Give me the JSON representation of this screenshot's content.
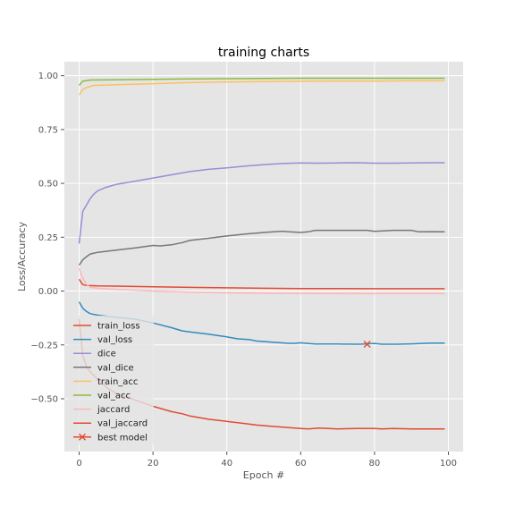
{
  "chart_data": {
    "type": "line",
    "title": "training charts",
    "xlabel": "Epoch #",
    "ylabel": "Loss/Accuracy",
    "xlim": [
      -4,
      104
    ],
    "ylim": [
      -0.745,
      1.065
    ],
    "xticks": [
      0,
      20,
      40,
      60,
      80,
      100
    ],
    "xtick_labels": [
      "0",
      "20",
      "40",
      "60",
      "80",
      "100"
    ],
    "yticks": [
      -0.5,
      -0.25,
      0.0,
      0.25,
      0.5,
      0.75,
      1.0
    ],
    "ytick_labels": [
      "−0.50",
      "−0.25",
      "0.00",
      "0.25",
      "0.50",
      "0.75",
      "1.00"
    ],
    "grid": true,
    "legend_position": "lower-left",
    "series": [
      {
        "name": "train_loss",
        "color": "#E24A33",
        "points": [
          [
            0,
            0.055
          ],
          [
            1,
            0.03
          ],
          [
            2,
            0.026
          ],
          [
            5,
            0.024
          ],
          [
            10,
            0.023
          ],
          [
            20,
            0.02
          ],
          [
            30,
            0.017
          ],
          [
            40,
            0.015
          ],
          [
            50,
            0.013
          ],
          [
            60,
            0.012
          ],
          [
            70,
            0.012
          ],
          [
            80,
            0.011
          ],
          [
            90,
            0.011
          ],
          [
            99,
            0.011
          ]
        ]
      },
      {
        "name": "val_loss",
        "color": "#348ABD",
        "points": [
          [
            0,
            -0.05
          ],
          [
            1,
            -0.08
          ],
          [
            2,
            -0.095
          ],
          [
            3,
            -0.105
          ],
          [
            5,
            -0.112
          ],
          [
            8,
            -0.118
          ],
          [
            10,
            -0.122
          ],
          [
            15,
            -0.13
          ],
          [
            20,
            -0.148
          ],
          [
            25,
            -0.17
          ],
          [
            28,
            -0.185
          ],
          [
            30,
            -0.19
          ],
          [
            35,
            -0.2
          ],
          [
            40,
            -0.213
          ],
          [
            43,
            -0.222
          ],
          [
            46,
            -0.225
          ],
          [
            48,
            -0.232
          ],
          [
            52,
            -0.237
          ],
          [
            56,
            -0.242
          ],
          [
            58,
            -0.243
          ],
          [
            60,
            -0.24
          ],
          [
            62,
            -0.243
          ],
          [
            64,
            -0.246
          ],
          [
            70,
            -0.246
          ],
          [
            76,
            -0.247
          ],
          [
            80,
            -0.243
          ],
          [
            82,
            -0.247
          ],
          [
            86,
            -0.247
          ],
          [
            90,
            -0.245
          ],
          [
            95,
            -0.242
          ],
          [
            99,
            -0.242
          ]
        ]
      },
      {
        "name": "dice",
        "color": "#988ED5",
        "points": [
          [
            0,
            0.22
          ],
          [
            1,
            0.37
          ],
          [
            2,
            0.4
          ],
          [
            3,
            0.43
          ],
          [
            4,
            0.45
          ],
          [
            5,
            0.465
          ],
          [
            7,
            0.48
          ],
          [
            10,
            0.495
          ],
          [
            15,
            0.51
          ],
          [
            20,
            0.525
          ],
          [
            25,
            0.54
          ],
          [
            30,
            0.555
          ],
          [
            35,
            0.565
          ],
          [
            40,
            0.572
          ],
          [
            45,
            0.58
          ],
          [
            50,
            0.587
          ],
          [
            55,
            0.592
          ],
          [
            60,
            0.595
          ],
          [
            65,
            0.594
          ],
          [
            70,
            0.595
          ],
          [
            75,
            0.596
          ],
          [
            80,
            0.594
          ],
          [
            85,
            0.594
          ],
          [
            90,
            0.595
          ],
          [
            95,
            0.596
          ],
          [
            99,
            0.596
          ]
        ]
      },
      {
        "name": "val_dice",
        "color": "#777777",
        "points": [
          [
            0,
            0.12
          ],
          [
            1,
            0.145
          ],
          [
            2,
            0.16
          ],
          [
            3,
            0.172
          ],
          [
            5,
            0.18
          ],
          [
            8,
            0.186
          ],
          [
            10,
            0.19
          ],
          [
            15,
            0.2
          ],
          [
            20,
            0.212
          ],
          [
            22,
            0.21
          ],
          [
            25,
            0.215
          ],
          [
            28,
            0.225
          ],
          [
            30,
            0.235
          ],
          [
            35,
            0.245
          ],
          [
            40,
            0.256
          ],
          [
            45,
            0.265
          ],
          [
            50,
            0.272
          ],
          [
            55,
            0.278
          ],
          [
            57,
            0.275
          ],
          [
            60,
            0.272
          ],
          [
            62,
            0.275
          ],
          [
            64,
            0.282
          ],
          [
            70,
            0.282
          ],
          [
            78,
            0.282
          ],
          [
            80,
            0.277
          ],
          [
            85,
            0.282
          ],
          [
            90,
            0.282
          ],
          [
            92,
            0.275
          ],
          [
            96,
            0.276
          ],
          [
            99,
            0.275
          ]
        ]
      },
      {
        "name": "train_acc",
        "color": "#FBC15E",
        "points": [
          [
            0,
            0.91
          ],
          [
            1,
            0.935
          ],
          [
            2,
            0.945
          ],
          [
            4,
            0.955
          ],
          [
            10,
            0.958
          ],
          [
            20,
            0.963
          ],
          [
            30,
            0.968
          ],
          [
            40,
            0.971
          ],
          [
            50,
            0.973
          ],
          [
            60,
            0.974
          ],
          [
            70,
            0.975
          ],
          [
            80,
            0.975
          ],
          [
            90,
            0.976
          ],
          [
            99,
            0.976
          ]
        ]
      },
      {
        "name": "val_acc",
        "color": "#8EBA42",
        "points": [
          [
            0,
            0.955
          ],
          [
            1,
            0.975
          ],
          [
            3,
            0.98
          ],
          [
            10,
            0.981
          ],
          [
            20,
            0.983
          ],
          [
            30,
            0.985
          ],
          [
            40,
            0.986
          ],
          [
            50,
            0.987
          ],
          [
            60,
            0.988
          ],
          [
            70,
            0.988
          ],
          [
            80,
            0.988
          ],
          [
            90,
            0.988
          ],
          [
            99,
            0.988
          ]
        ]
      },
      {
        "name": "jaccard",
        "color": "#FFB5B8",
        "points": [
          [
            0,
            0.105
          ],
          [
            1,
            0.06
          ],
          [
            2,
            0.03
          ],
          [
            3,
            0.018
          ],
          [
            5,
            0.013
          ],
          [
            10,
            0.008
          ],
          [
            20,
            0.0
          ],
          [
            30,
            -0.005
          ],
          [
            40,
            -0.008
          ],
          [
            50,
            -0.01
          ],
          [
            60,
            -0.011
          ],
          [
            70,
            -0.012
          ],
          [
            80,
            -0.012
          ],
          [
            90,
            -0.012
          ],
          [
            99,
            -0.012
          ]
        ]
      },
      {
        "name": "val_jaccard",
        "color": "#E24A33",
        "points": [
          [
            0,
            -0.13
          ],
          [
            1,
            -0.3
          ],
          [
            2,
            -0.35
          ],
          [
            3,
            -0.375
          ],
          [
            5,
            -0.41
          ],
          [
            8,
            -0.455
          ],
          [
            10,
            -0.475
          ],
          [
            15,
            -0.505
          ],
          [
            20,
            -0.535
          ],
          [
            25,
            -0.56
          ],
          [
            28,
            -0.57
          ],
          [
            30,
            -0.58
          ],
          [
            35,
            -0.595
          ],
          [
            40,
            -0.605
          ],
          [
            45,
            -0.615
          ],
          [
            48,
            -0.622
          ],
          [
            52,
            -0.628
          ],
          [
            56,
            -0.633
          ],
          [
            60,
            -0.638
          ],
          [
            62,
            -0.64
          ],
          [
            65,
            -0.636
          ],
          [
            70,
            -0.64
          ],
          [
            75,
            -0.638
          ],
          [
            80,
            -0.638
          ],
          [
            82,
            -0.64
          ],
          [
            85,
            -0.638
          ],
          [
            90,
            -0.64
          ],
          [
            95,
            -0.64
          ],
          [
            99,
            -0.64
          ]
        ]
      }
    ],
    "best_model": {
      "name": "best model",
      "x": 78,
      "y": -0.247,
      "color": "#E24A33",
      "marker": "x"
    }
  }
}
